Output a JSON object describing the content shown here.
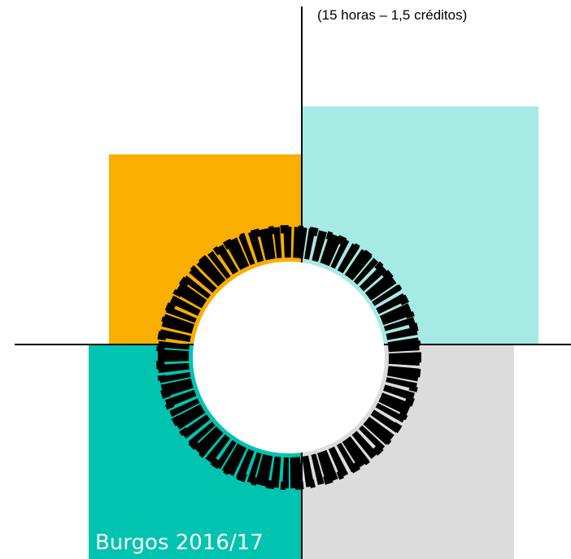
{
  "header": {
    "subtitle": "(15 horas – 1,5 créditos)"
  },
  "footer": {
    "text": "Burgos 2016/17"
  }
}
